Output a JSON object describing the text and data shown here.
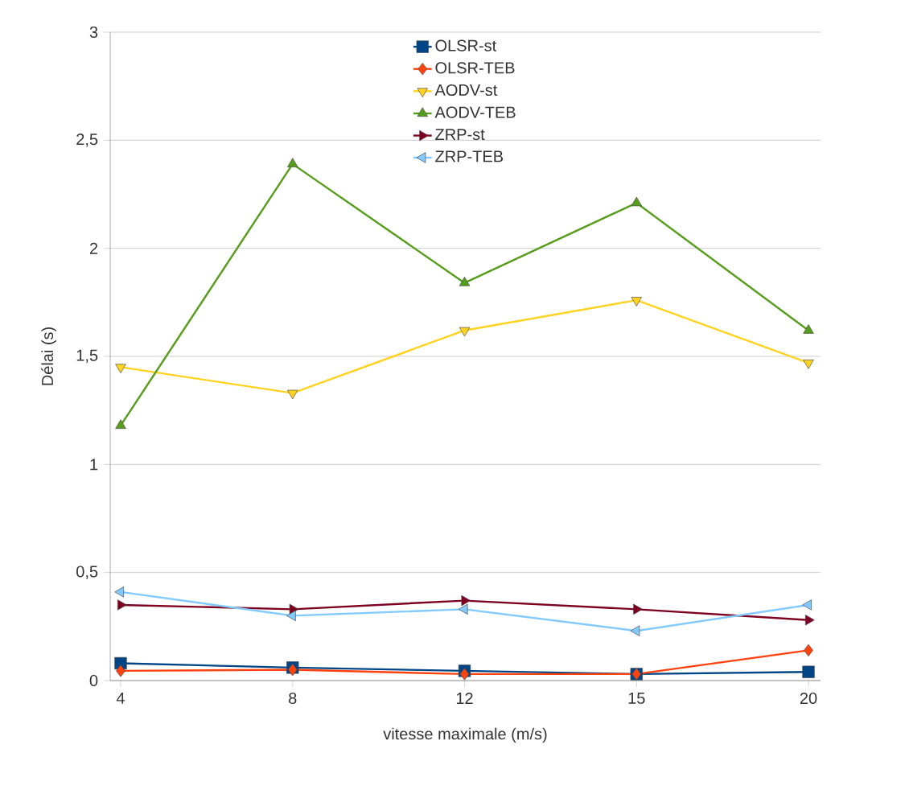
{
  "chart_data": {
    "type": "line",
    "xlabel": "vitesse maximale (m/s)",
    "ylabel": "Délai (s)",
    "categories": [
      "4",
      "8",
      "12",
      "15",
      "20"
    ],
    "ylim": [
      0,
      3
    ],
    "yticks": [
      0,
      {
        "value": 0.5,
        "label": "0,5"
      },
      1,
      {
        "value": 1.5,
        "label": "1,5"
      },
      2,
      {
        "value": 2.5,
        "label": "2,5"
      },
      3
    ],
    "grid": "y",
    "legend": "top",
    "series": [
      {
        "name": "OLSR-st",
        "color": "#004586",
        "marker": "square",
        "values": [
          0.08,
          0.06,
          0.045,
          0.03,
          0.04
        ]
      },
      {
        "name": "OLSR-TEB",
        "color": "#ff420e",
        "marker": "diamond",
        "values": [
          0.045,
          0.05,
          0.03,
          0.03,
          0.14
        ]
      },
      {
        "name": "AODV-st",
        "color": "#ffd320",
        "marker": "triangle down",
        "values": [
          1.45,
          1.33,
          1.62,
          1.76,
          1.47
        ]
      },
      {
        "name": "AODV-TEB",
        "color": "#579d1c",
        "marker": "triangle",
        "values": [
          1.18,
          2.39,
          1.84,
          2.21,
          1.62
        ]
      },
      {
        "name": "ZRP-st",
        "color": "#7e0021",
        "marker": "triangle right",
        "values": [
          0.35,
          0.33,
          0.37,
          0.33,
          0.28
        ]
      },
      {
        "name": "ZRP-TEB",
        "color": "#83caff",
        "marker": "triangle left",
        "values": [
          0.41,
          0.3,
          0.33,
          0.23,
          0.35
        ]
      }
    ]
  }
}
